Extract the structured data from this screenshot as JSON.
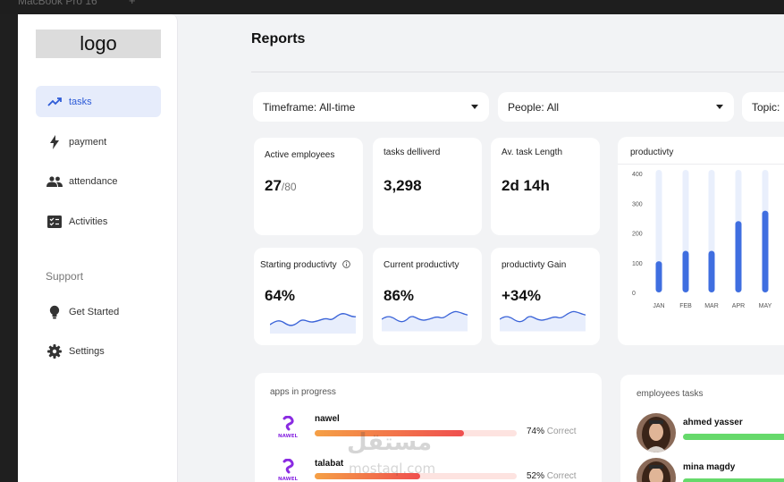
{
  "window": {
    "title": "MacBook Pro 16",
    "plus": "+"
  },
  "logo": "logo",
  "sidebar": {
    "items": [
      {
        "label": "tasks",
        "icon": "trend-up-icon",
        "active": true
      },
      {
        "label": "payment",
        "icon": "lightning-icon"
      },
      {
        "label": "attendance",
        "icon": "people-icon"
      },
      {
        "label": "Activities",
        "icon": "checklist-icon"
      }
    ],
    "support_label": "Support",
    "support_items": [
      {
        "label": "Get Started",
        "icon": "lightbulb-icon"
      },
      {
        "label": "Settings",
        "icon": "gear-icon"
      }
    ]
  },
  "header": {
    "title": "Reports"
  },
  "filters": [
    {
      "label": "Timeframe:",
      "value": "All-time"
    },
    {
      "label": "People:",
      "value": "All"
    },
    {
      "label": "Topic:",
      "value": ""
    }
  ],
  "stats": [
    {
      "title": "Active employees",
      "value": "27",
      "sub": "/80"
    },
    {
      "title": "tasks delliverd",
      "value": "3,298",
      "sub": ""
    },
    {
      "title": "Av. task Length",
      "value": "2d 14h",
      "sub": ""
    }
  ],
  "productivity_cards": [
    {
      "title": "Starting productivty",
      "value": "64%",
      "info_icon": "info-icon"
    },
    {
      "title": "Current productivty",
      "value": "86%"
    },
    {
      "title": "productivty Gain",
      "value": "+34%"
    }
  ],
  "chart_data": {
    "type": "bar",
    "title": "productivty",
    "categories": [
      "JAN",
      "FEB",
      "MAR",
      "APR",
      "MAY"
    ],
    "values": [
      105,
      140,
      140,
      240,
      275
    ],
    "max_values": [
      400,
      400,
      400,
      400,
      400
    ],
    "yticks": [
      "400",
      "300",
      "200",
      "100",
      "0"
    ],
    "ylim": [
      0,
      400
    ],
    "xlabel": "",
    "ylabel": "",
    "colors": {
      "bar": "#3f6ee0",
      "track": "#e9effc"
    }
  },
  "apps": {
    "title": "apps in progress",
    "items": [
      {
        "name": "nawel",
        "logo_text": "NAWEL",
        "percent": 74,
        "percent_text": "74%",
        "suffix": "Correct"
      },
      {
        "name": "talabat",
        "logo_text": "NAWEL",
        "percent": 52,
        "percent_text": "52%",
        "suffix": "Correct"
      }
    ]
  },
  "employees": {
    "title": "employees tasks",
    "items": [
      {
        "name": "ahmed yasser",
        "percent": 100
      },
      {
        "name": "mina magdy",
        "percent": 100
      }
    ]
  },
  "watermark": {
    "arabic": "مستقل",
    "latin": "mostaql.com"
  },
  "colors": {
    "accent": "#2d5bd7",
    "active_bg": "#e6ecfb",
    "spark": "#3a63d8"
  }
}
